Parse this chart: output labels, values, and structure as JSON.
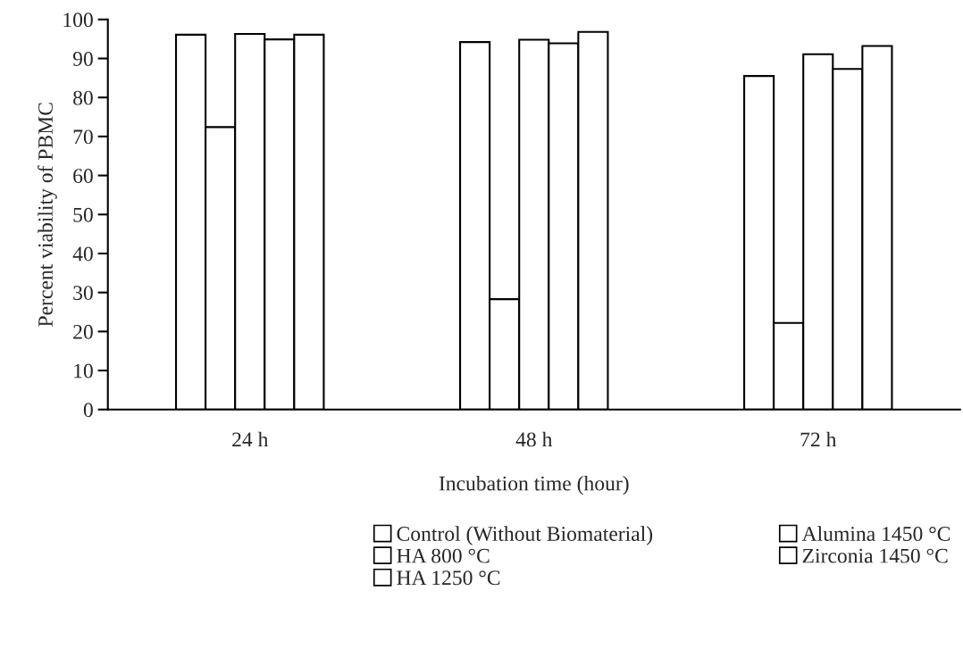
{
  "chart_data": {
    "type": "bar",
    "xlabel": "Incubation time (hour)",
    "ylabel": "Percent viability of PBMC",
    "categories": [
      "24 h",
      "48 h",
      "72 h"
    ],
    "series": [
      {
        "name": "Control (Without Biomaterial)",
        "color": "#ffffff",
        "values": [
          96.1,
          94.2,
          85.5
        ]
      },
      {
        "name": "HA 800 °C",
        "color": "#ffffff",
        "values": [
          72.4,
          28.3,
          22.2
        ]
      },
      {
        "name": "HA 1250 °C",
        "color": "#ffffff",
        "values": [
          96.3,
          94.8,
          91.1
        ]
      },
      {
        "name": "Alumina 1450 °C",
        "color": "#ffffff",
        "values": [
          94.9,
          93.9,
          87.3
        ]
      },
      {
        "name": "Zirconia 1450 °C",
        "color": "#ffffff",
        "values": [
          96.1,
          96.8,
          93.2
        ]
      }
    ],
    "ylim": [
      0,
      100
    ],
    "yticks": [
      0,
      10,
      20,
      30,
      40,
      50,
      60,
      70,
      80,
      90,
      100
    ],
    "grid": false,
    "legend": "bottom"
  }
}
